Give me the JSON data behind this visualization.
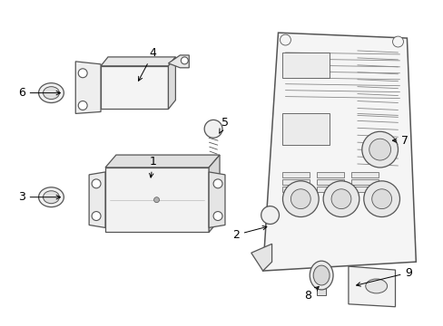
{
  "bg_color": "#ffffff",
  "line_color": "#555555",
  "label_color": "#000000",
  "fig_width": 4.89,
  "fig_height": 3.6,
  "dpi": 100
}
